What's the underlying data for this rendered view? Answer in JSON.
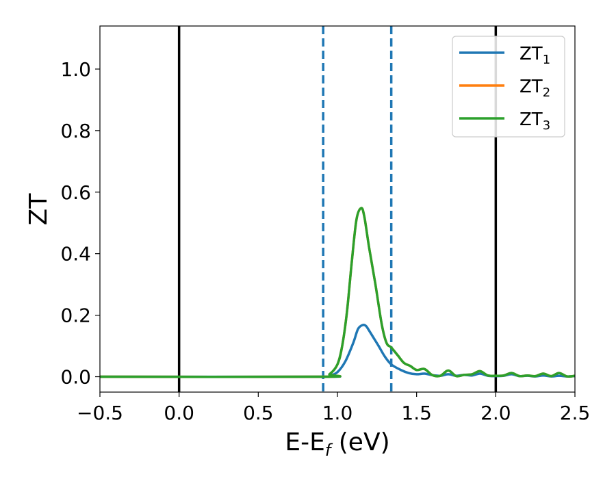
{
  "chart_data": {
    "type": "line",
    "xlabel": "E-E",
    "xlabel_sub": "f",
    "xlabel_unit": " (eV)",
    "ylabel": "ZT",
    "xlim": [
      -0.5,
      2.5
    ],
    "ylim": [
      -0.05,
      1.14
    ],
    "x_ticks": [
      -0.5,
      0.0,
      0.5,
      1.0,
      1.5,
      2.0,
      2.5
    ],
    "x_tick_labels": [
      "−0.5",
      "0.0",
      "0.5",
      "1.0",
      "1.5",
      "2.0",
      "2.5"
    ],
    "y_ticks": [
      0.0,
      0.2,
      0.4,
      0.6,
      0.8,
      1.0
    ],
    "y_tick_labels": [
      "0.0",
      "0.2",
      "0.4",
      "0.6",
      "0.8",
      "1.0"
    ],
    "grid": false,
    "legend_position": "top-right",
    "vertical_lines": [
      {
        "x": 0.0,
        "style": "solid",
        "color": "#000000"
      },
      {
        "x": 2.0,
        "style": "solid",
        "color": "#000000"
      },
      {
        "x": 0.91,
        "style": "dashed",
        "color": "#1f77b4"
      },
      {
        "x": 1.34,
        "style": "dashed",
        "color": "#1f77b4"
      }
    ],
    "series": [
      {
        "name": "ZT",
        "subscript": "1",
        "color": "#1f77b4",
        "x": [
          -0.5,
          0.9,
          0.95,
          1.0,
          1.05,
          1.1,
          1.13,
          1.16,
          1.18,
          1.2,
          1.23,
          1.26,
          1.3,
          1.34,
          1.4,
          1.45,
          1.5,
          1.55,
          1.6,
          1.65,
          1.7,
          1.75,
          1.8,
          1.85,
          1.9,
          1.95,
          2.0,
          2.05,
          2.1,
          2.15,
          2.2,
          2.25,
          2.3,
          2.35,
          2.4,
          2.45,
          2.5
        ],
        "y": [
          0.0,
          0.0,
          0.003,
          0.015,
          0.05,
          0.11,
          0.155,
          0.168,
          0.165,
          0.15,
          0.125,
          0.1,
          0.065,
          0.04,
          0.022,
          0.012,
          0.008,
          0.01,
          0.005,
          0.003,
          0.008,
          0.003,
          0.006,
          0.004,
          0.01,
          0.003,
          0.002,
          0.003,
          0.008,
          0.002,
          0.003,
          0.001,
          0.004,
          0.001,
          0.003,
          0.001,
          0.002
        ]
      },
      {
        "name": "ZT",
        "subscript": "2",
        "color": "#ff7f0e",
        "x": [
          -0.5,
          0.9,
          0.95,
          1.0,
          1.03,
          1.06,
          1.09,
          1.12,
          1.15,
          1.17,
          1.2,
          1.24,
          1.28,
          1.31,
          1.34,
          1.38,
          1.42,
          1.46,
          1.5,
          1.55,
          1.6,
          1.65,
          1.7,
          1.75,
          1.8,
          1.85,
          1.9,
          1.95,
          2.0,
          2.05,
          2.1,
          2.15,
          2.2,
          2.25,
          2.3,
          2.35,
          2.4,
          2.45,
          2.5
        ],
        "y": [
          0.0,
          0.0,
          0.008,
          0.04,
          0.1,
          0.21,
          0.37,
          0.51,
          0.548,
          0.52,
          0.42,
          0.3,
          0.17,
          0.11,
          0.095,
          0.07,
          0.045,
          0.035,
          0.022,
          0.025,
          0.005,
          0.003,
          0.02,
          0.002,
          0.006,
          0.008,
          0.018,
          0.004,
          0.003,
          0.004,
          0.012,
          0.002,
          0.004,
          0.002,
          0.01,
          0.002,
          0.012,
          0.001,
          0.003
        ]
      },
      {
        "name": "ZT",
        "subscript": "3",
        "color": "#2ca02c",
        "x": [
          -0.5,
          0.9,
          0.95,
          1.0,
          1.03,
          1.06,
          1.09,
          1.12,
          1.15,
          1.17,
          1.2,
          1.24,
          1.28,
          1.31,
          1.34,
          1.38,
          1.42,
          1.46,
          1.5,
          1.55,
          1.6,
          1.65,
          1.7,
          1.75,
          1.8,
          1.85,
          1.9,
          1.95,
          2.0,
          2.05,
          2.1,
          2.15,
          2.2,
          2.25,
          2.3,
          2.35,
          2.4,
          2.45,
          2.5
        ],
        "y": [
          0.0,
          0.0,
          0.008,
          0.04,
          0.1,
          0.21,
          0.37,
          0.51,
          0.548,
          0.52,
          0.42,
          0.3,
          0.17,
          0.11,
          0.095,
          0.07,
          0.045,
          0.035,
          0.022,
          0.025,
          0.005,
          0.003,
          0.02,
          0.002,
          0.006,
          0.008,
          0.018,
          0.004,
          0.003,
          0.004,
          0.012,
          0.002,
          0.004,
          0.002,
          0.01,
          0.002,
          0.012,
          0.001,
          0.003
        ]
      }
    ]
  }
}
